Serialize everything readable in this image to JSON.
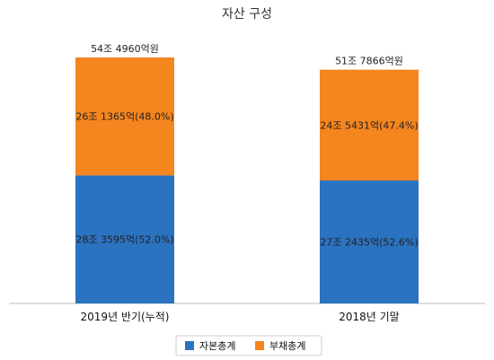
{
  "chart_data": {
    "type": "bar",
    "stacked": true,
    "title": "자산 구성",
    "categories": [
      "2019년 반기(누적)",
      "2018년 기말"
    ],
    "series": [
      {
        "name": "자본총계",
        "color": "#2b72c0",
        "values": [
          283595,
          272435
        ],
        "labels": [
          "28조 3595억(52.0%)",
          "27조 2435억(52.6%)"
        ]
      },
      {
        "name": "부채총계",
        "color": "#f5851f",
        "values": [
          261365,
          245431
        ],
        "labels": [
          "26조 1365억(48.0%)",
          "24조 5431억(47.4%)"
        ]
      }
    ],
    "totals": [
      "54조 4960억원",
      "51조 7866억원"
    ],
    "unit": "억원",
    "legend": "bottom",
    "grid": false
  }
}
